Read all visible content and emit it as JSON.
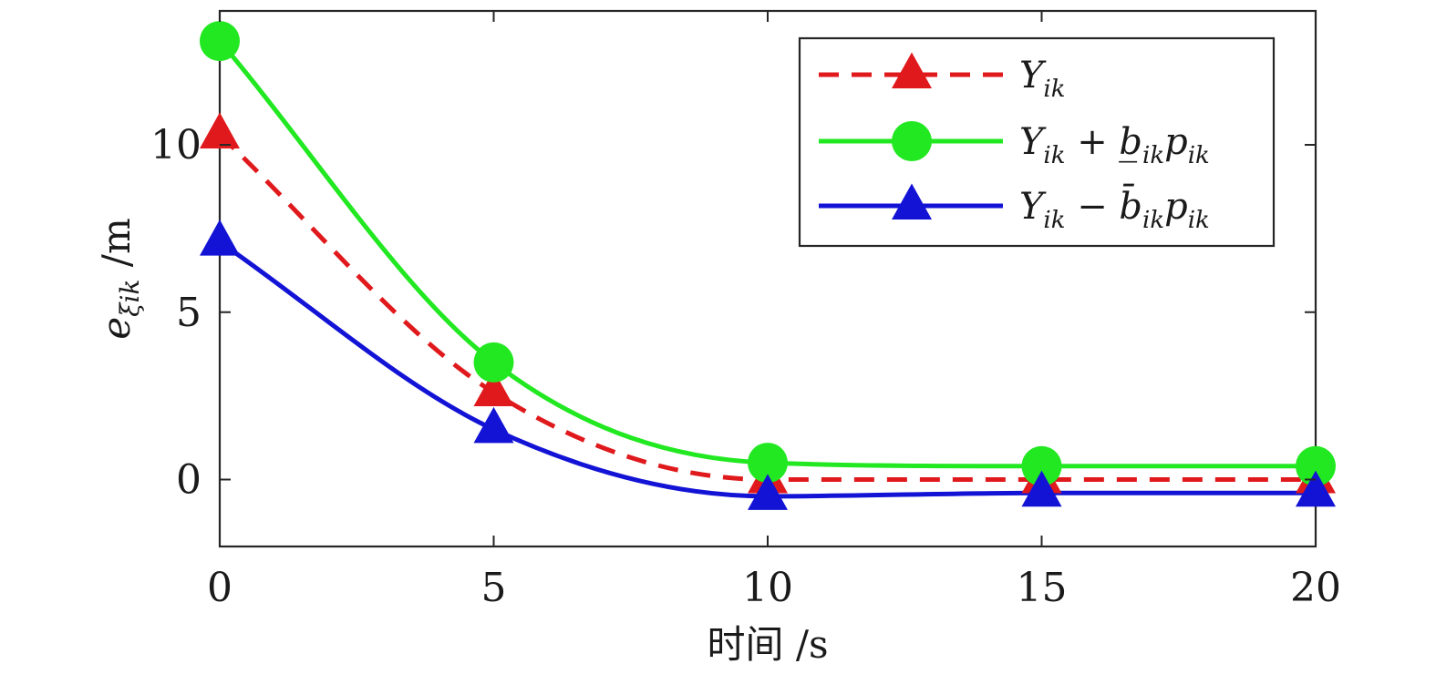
{
  "chart_data": {
    "type": "line",
    "xlabel": "时间 /s",
    "ylabel": "e_ξik /m",
    "xlim": [
      0,
      20
    ],
    "ylim": [
      -2,
      14
    ],
    "x_ticks": [
      0,
      5,
      10,
      15,
      20
    ],
    "y_ticks": [
      0,
      5,
      10
    ],
    "x_tick_labels": [
      "0",
      "5",
      "10",
      "15",
      "20"
    ],
    "y_tick_labels": [
      "0",
      "5",
      "10"
    ],
    "grid": false,
    "legend_position": "top-right",
    "x": [
      0,
      5,
      10,
      15,
      20
    ],
    "series": [
      {
        "name": "Y_ik",
        "legend": {
          "main": "Y",
          "sub": "ik",
          "rest": ""
        },
        "values": [
          10.3,
          2.6,
          0.0,
          0.0,
          0.0
        ],
        "color": "#e0191c",
        "style": "dashed",
        "marker": "triangle"
      },
      {
        "name": "Y_ik + b̲_ik p_ik",
        "legend": {
          "main": "Y",
          "sub": "ik",
          "rest": " + b̲",
          "sub2": "ik",
          "p": "p",
          "sub3": "ik"
        },
        "values": [
          13.1,
          3.5,
          0.5,
          0.4,
          0.4
        ],
        "color": "#22e822",
        "style": "solid",
        "marker": "circle"
      },
      {
        "name": "Y_ik − b̄_ik p_ik",
        "legend": {
          "main": "Y",
          "sub": "ik",
          "rest": " − b̄",
          "sub2": "ik",
          "p": "p",
          "sub3": "ik"
        },
        "values": [
          7.1,
          1.5,
          -0.5,
          -0.4,
          -0.4
        ],
        "color": "#1313d6",
        "style": "solid",
        "marker": "triangle"
      }
    ]
  }
}
